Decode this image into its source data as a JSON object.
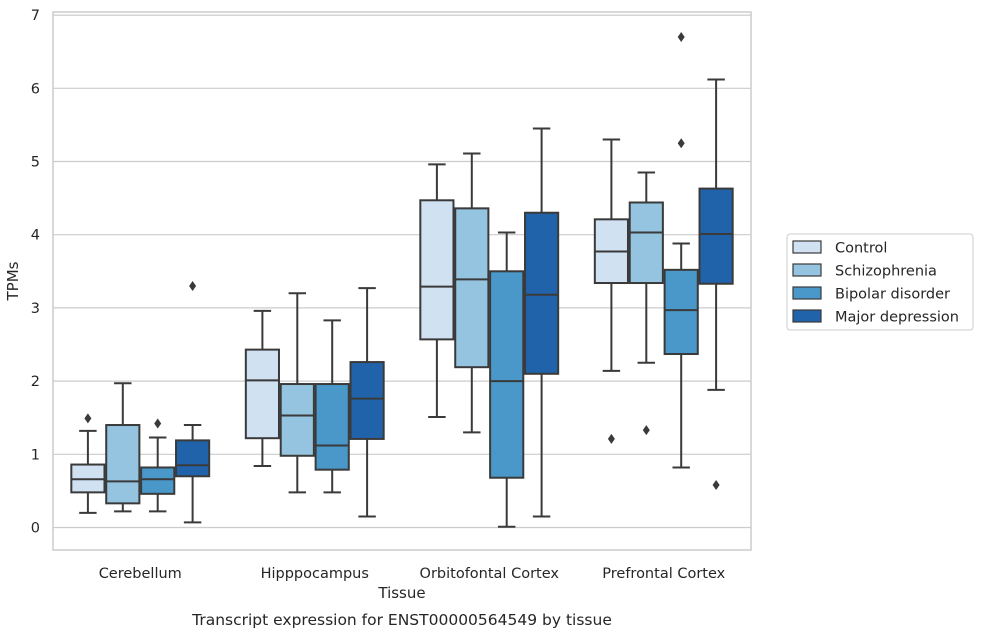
{
  "chart_data": {
    "type": "boxplot",
    "title": "",
    "xlabel": "Tissue",
    "ylabel": "TPMs",
    "caption": "Transcript expression for ENST00000564549 by tissue",
    "ylim": [
      -0.3,
      7.05
    ],
    "yticks": [
      0,
      1,
      2,
      3,
      4,
      5,
      6,
      7
    ],
    "grid": "horizontal",
    "legend_position": "right",
    "categories": [
      "Cerebellum",
      "Hipppocampus",
      "Orbitofontal Cortex",
      "Prefrontal Cortex"
    ],
    "series": [
      {
        "name": "Control",
        "color": "#d0e1f2",
        "boxes": [
          {
            "whislo": 0.2,
            "q1": 0.48,
            "med": 0.66,
            "q3": 0.86,
            "whishi": 1.32,
            "fliers": [
              1.49
            ]
          },
          {
            "whislo": 0.84,
            "q1": 1.22,
            "med": 2.01,
            "q3": 2.43,
            "whishi": 2.96,
            "fliers": []
          },
          {
            "whislo": 1.51,
            "q1": 2.57,
            "med": 3.29,
            "q3": 4.47,
            "whishi": 4.96,
            "fliers": []
          },
          {
            "whislo": 2.14,
            "q1": 3.34,
            "med": 3.77,
            "q3": 4.21,
            "whishi": 5.3,
            "fliers": [
              1.21
            ]
          }
        ]
      },
      {
        "name": "Schizophrenia",
        "color": "#94c4df",
        "boxes": [
          {
            "whislo": 0.22,
            "q1": 0.33,
            "med": 0.63,
            "q3": 1.4,
            "whishi": 1.97,
            "fliers": []
          },
          {
            "whislo": 0.48,
            "q1": 0.98,
            "med": 1.53,
            "q3": 1.96,
            "whishi": 3.2,
            "fliers": []
          },
          {
            "whislo": 1.3,
            "q1": 2.19,
            "med": 3.39,
            "q3": 4.36,
            "whishi": 5.11,
            "fliers": []
          },
          {
            "whislo": 2.25,
            "q1": 3.34,
            "med": 4.03,
            "q3": 4.44,
            "whishi": 4.85,
            "fliers": [
              1.33
            ]
          }
        ]
      },
      {
        "name": "Bipolar disorder",
        "color": "#4a98c9",
        "boxes": [
          {
            "whislo": 0.22,
            "q1": 0.46,
            "med": 0.66,
            "q3": 0.82,
            "whishi": 1.23,
            "fliers": [
              1.42
            ]
          },
          {
            "whislo": 0.48,
            "q1": 0.79,
            "med": 1.12,
            "q3": 1.96,
            "whishi": 2.83,
            "fliers": []
          },
          {
            "whislo": 0.01,
            "q1": 0.68,
            "med": 2.0,
            "q3": 3.5,
            "whishi": 4.03,
            "fliers": []
          },
          {
            "whislo": 0.82,
            "q1": 2.37,
            "med": 2.97,
            "q3": 3.52,
            "whishi": 3.88,
            "fliers": [
              6.7,
              5.25
            ]
          }
        ]
      },
      {
        "name": "Major depression",
        "color": "#2163aa",
        "boxes": [
          {
            "whislo": 0.07,
            "q1": 0.7,
            "med": 0.85,
            "q3": 1.19,
            "whishi": 1.4,
            "fliers": [
              3.3
            ]
          },
          {
            "whislo": 0.15,
            "q1": 1.21,
            "med": 1.76,
            "q3": 2.26,
            "whishi": 3.27,
            "fliers": []
          },
          {
            "whislo": 0.15,
            "q1": 2.1,
            "med": 3.18,
            "q3": 4.3,
            "whishi": 5.45,
            "fliers": []
          },
          {
            "whislo": 1.88,
            "q1": 3.33,
            "med": 4.01,
            "q3": 4.63,
            "whishi": 6.12,
            "fliers": [
              0.58
            ]
          }
        ]
      }
    ]
  }
}
